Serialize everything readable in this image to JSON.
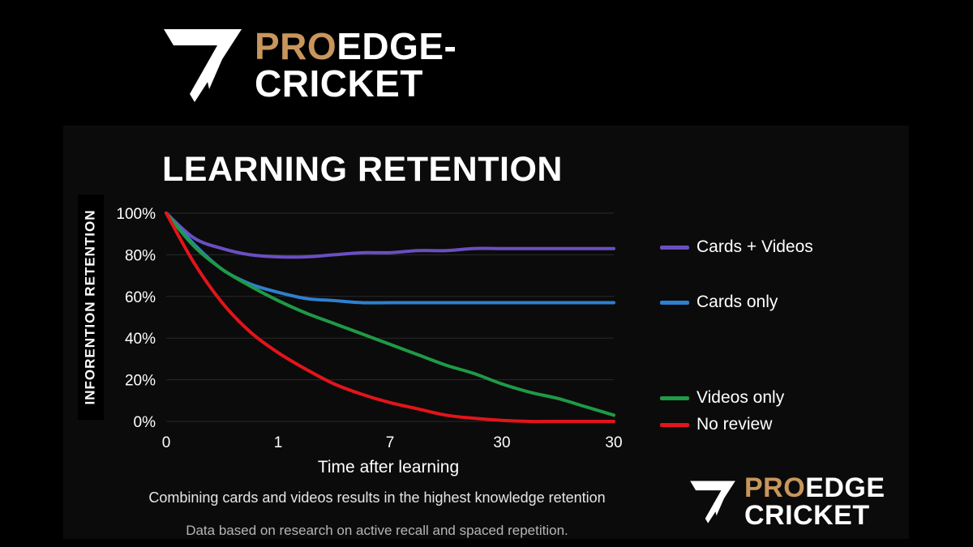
{
  "header": {
    "logo_text_pro": "PRO",
    "logo_text_rest_line1": "EDGE-",
    "logo_text_line2": "CRICKET"
  },
  "footer_logo": {
    "logo_text_pro": "PRO",
    "logo_text_rest_line1": "EDGE",
    "logo_text_line2": "CRICKET"
  },
  "captions": {
    "main": "Combining cards and videos results in the highest knowledge retention",
    "sub": "Data based on research on active recall and spaced repetition."
  },
  "colors": {
    "brand_gold": "#c8965c",
    "cards_videos": "#6a4fc2",
    "cards_only": "#2f7fd0",
    "videos_only": "#1f9a45",
    "no_review": "#e3141b"
  },
  "chart_data": {
    "type": "line",
    "title": "LEARNING RETENTION",
    "xlabel": "Time after learning",
    "ylabel": "INFORENTION RETENTION",
    "x_ticks": [
      "0",
      "1",
      "7",
      "30",
      "30"
    ],
    "y_ticks": [
      "0%",
      "20%",
      "40%",
      "60%",
      "80%",
      "100%"
    ],
    "ylim": [
      0,
      100
    ],
    "grid": true,
    "legend_position": "right",
    "x": [
      0,
      0.25,
      0.5,
      0.75,
      1,
      1.25,
      1.5,
      1.75,
      2,
      2.25,
      2.5,
      2.75,
      3,
      3.25,
      3.5,
      3.75,
      4
    ],
    "series": [
      {
        "name": "Cards + Videos",
        "color": "#6a4fc2",
        "values": [
          100,
          88,
          83,
          80,
          79,
          79,
          80,
          81,
          81,
          82,
          82,
          83,
          83,
          83,
          83,
          83,
          83
        ]
      },
      {
        "name": "Cards only",
        "color": "#2f7fd0",
        "values": [
          100,
          85,
          73,
          66,
          62,
          59,
          58,
          57,
          57,
          57,
          57,
          57,
          57,
          57,
          57,
          57,
          57
        ]
      },
      {
        "name": "Videos only",
        "color": "#1f9a45",
        "values": [
          100,
          84,
          73,
          65,
          58,
          52,
          47,
          42,
          37,
          32,
          27,
          23,
          18,
          14,
          11,
          7,
          3
        ]
      },
      {
        "name": "No review",
        "color": "#e3141b",
        "values": [
          100,
          76,
          57,
          43,
          33,
          25,
          18,
          13,
          9,
          6,
          3,
          1.5,
          0.5,
          0,
          0,
          0,
          0
        ]
      }
    ]
  }
}
